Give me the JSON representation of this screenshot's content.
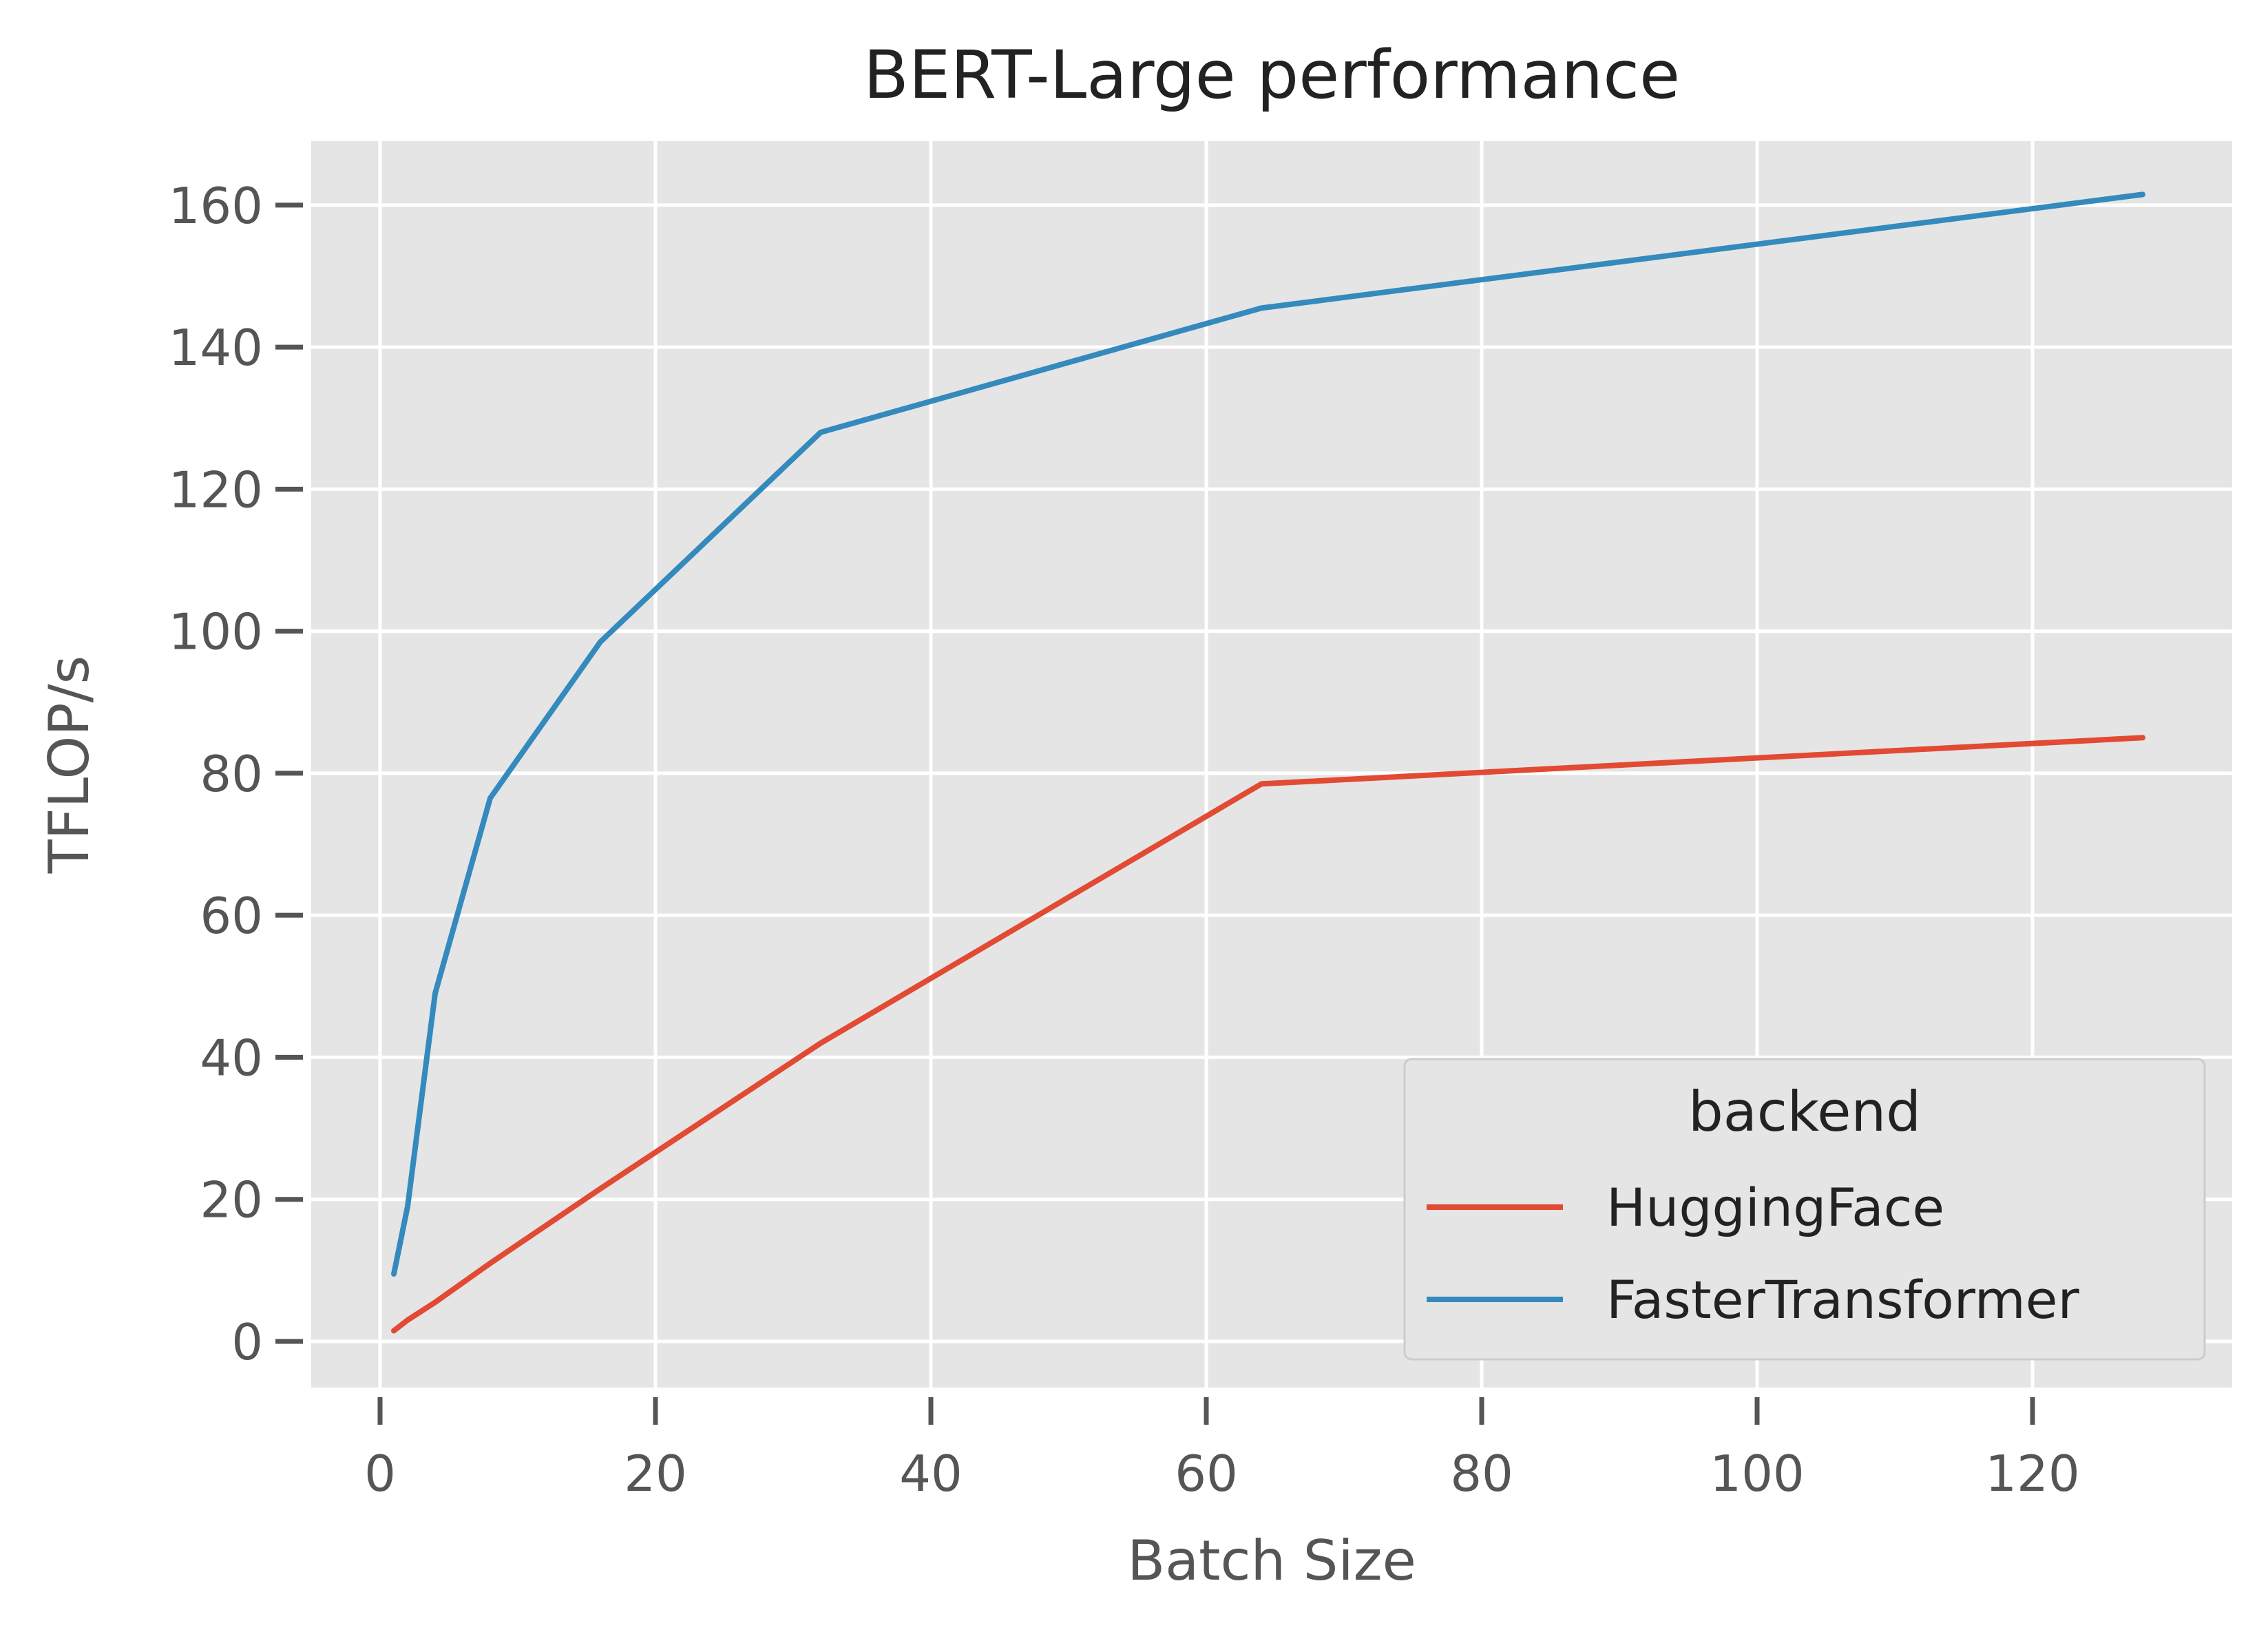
{
  "chart_data": {
    "type": "line",
    "title": "BERT-Large performance",
    "xlabel": "Batch Size",
    "ylabel": "TFLOP/s",
    "xlim": [
      -5,
      134.5
    ],
    "ylim": [
      -6.5,
      169
    ],
    "xticks": [
      0,
      20,
      40,
      60,
      80,
      100,
      120
    ],
    "yticks": [
      0,
      20,
      40,
      60,
      80,
      100,
      120,
      140,
      160
    ],
    "grid": true,
    "legend": {
      "title": "backend",
      "placement": "bottom-right"
    },
    "series": [
      {
        "name": "HuggingFace",
        "color": "#E24A33",
        "x": [
          1,
          2,
          4,
          8,
          16,
          32,
          64,
          128
        ],
        "y": [
          1.5,
          3,
          5.5,
          11,
          21.5,
          42,
          78.5,
          85
        ]
      },
      {
        "name": "FasterTransformer",
        "color": "#348ABD",
        "x": [
          1,
          2,
          4,
          8,
          16,
          32,
          64,
          128
        ],
        "y": [
          9.5,
          19,
          49,
          76.5,
          98.5,
          128,
          145.5,
          161.5
        ]
      }
    ]
  }
}
